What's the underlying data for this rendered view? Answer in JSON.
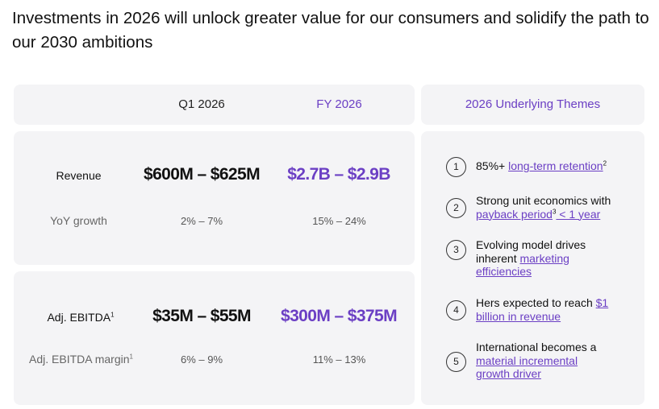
{
  "title": "Investments in 2026 will unlock greater value for our consumers and solidify the path to our 2030 ambitions",
  "header": {
    "q1": "Q1 2026",
    "fy": "FY 2026",
    "themes": "2026 Underlying Themes"
  },
  "revenue": {
    "label": "Revenue",
    "q1": "$600M – $625M",
    "fy": "$2.7B – $2.9B",
    "sub_label": "YoY growth",
    "sub_q1": "2% – 7%",
    "sub_fy": "15% – 24%"
  },
  "ebitda": {
    "label": "Adj. EBITDA",
    "label_sup": "1",
    "q1": "$35M – $55M",
    "fy": "$300M – $375M",
    "sub_label": "Adj. EBITDA margin",
    "sub_label_sup": "1",
    "sub_q1": "6% – 9%",
    "sub_fy": "11% – 13%"
  },
  "themes": [
    {
      "num": "1",
      "pre": "85%+ ",
      "link": "long-term retention",
      "sup": "2",
      "post": ""
    },
    {
      "num": "2",
      "pre": "Strong unit economics with ",
      "link": "payback period",
      "sup": "3",
      "post": " < 1 year"
    },
    {
      "num": "3",
      "pre": "Evolving model drives inherent ",
      "link": "marketing efficiencies",
      "sup": "",
      "post": ""
    },
    {
      "num": "4",
      "pre": "Hers expected to reach ",
      "link": "$1 billion in revenue",
      "sup": "",
      "post": ""
    },
    {
      "num": "5",
      "pre": "International becomes a ",
      "link": "material incremental growth driver",
      "sup": "",
      "post": ""
    }
  ],
  "colors": {
    "accent": "#6b3fc4",
    "panel": "#f4f4f6"
  }
}
